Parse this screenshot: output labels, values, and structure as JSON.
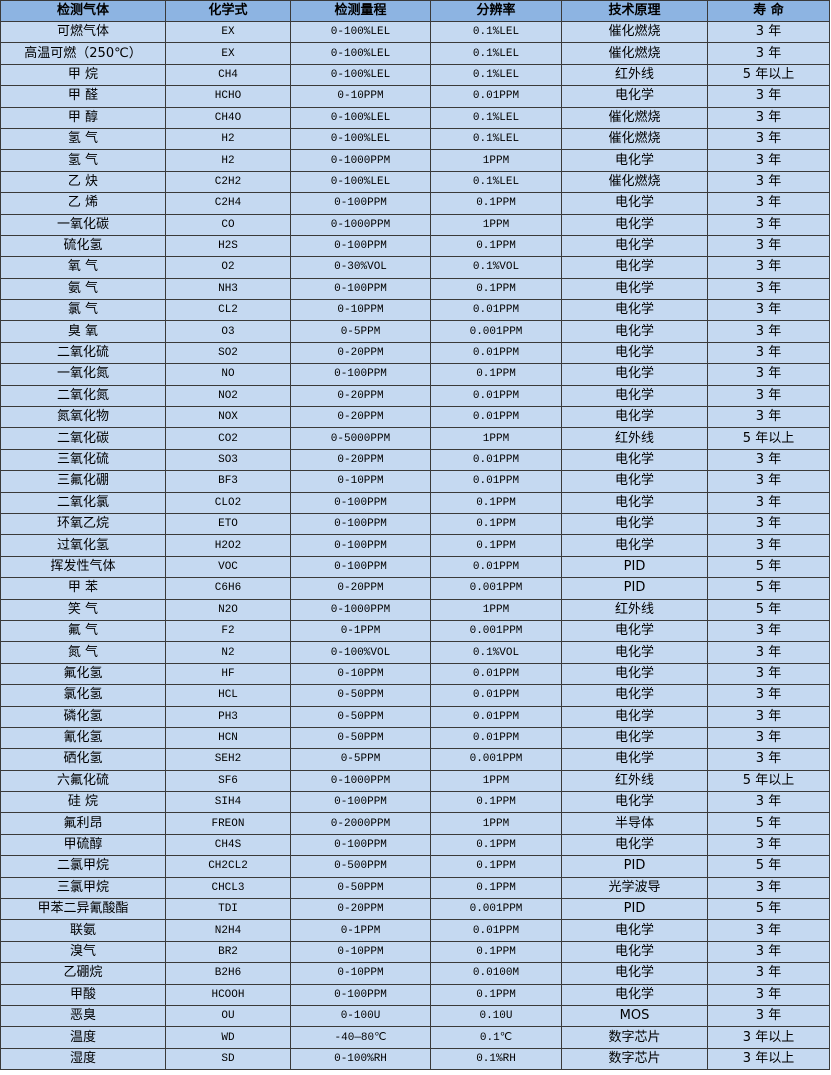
{
  "colors": {
    "header_bg": "#8db4e2",
    "row_bg": "#c5d9f1",
    "border": "#3a3a3a"
  },
  "headers": [
    "检测气体",
    "化学式",
    "检测量程",
    "分辨率",
    "技术原理",
    "寿 命"
  ],
  "rows": [
    [
      "可燃气体",
      "EX",
      "0-100%LEL",
      "0.1%LEL",
      "催化燃烧",
      "3 年"
    ],
    [
      "高温可燃（250℃）",
      "EX",
      "0-100%LEL",
      "0.1%LEL",
      "催化燃烧",
      "3 年"
    ],
    [
      "甲 烷",
      "CH4",
      "0-100%LEL",
      "0.1%LEL",
      "红外线",
      "5 年以上"
    ],
    [
      "甲 醛",
      "HCHO",
      "0-10PPM",
      "0.01PPM",
      "电化学",
      "3 年"
    ],
    [
      "甲 醇",
      "CH4O",
      "0-100%LEL",
      "0.1%LEL",
      "催化燃烧",
      "3 年"
    ],
    [
      "氢 气",
      "H2",
      "0-100%LEL",
      "0.1%LEL",
      "催化燃烧",
      "3 年"
    ],
    [
      "氢 气",
      "H2",
      "0-1000PPM",
      "1PPM",
      "电化学",
      "3 年"
    ],
    [
      "乙 炔",
      "C2H2",
      "0-100%LEL",
      "0.1%LEL",
      "催化燃烧",
      "3 年"
    ],
    [
      "乙 烯",
      "C2H4",
      "0-100PPM",
      "0.1PPM",
      "电化学",
      "3 年"
    ],
    [
      "一氧化碳",
      "CO",
      "0-1000PPM",
      "1PPM",
      "电化学",
      "3 年"
    ],
    [
      "硫化氢",
      "H2S",
      "0-100PPM",
      "0.1PPM",
      "电化学",
      "3 年"
    ],
    [
      "氧 气",
      "O2",
      "0-30%VOL",
      "0.1%VOL",
      "电化学",
      "3 年"
    ],
    [
      "氨 气",
      "NH3",
      "0-100PPM",
      "0.1PPM",
      "电化学",
      "3 年"
    ],
    [
      "氯 气",
      "CL2",
      "0-10PPM",
      "0.01PPM",
      "电化学",
      "3 年"
    ],
    [
      "臭 氧",
      "O3",
      "0-5PPM",
      "0.001PPM",
      "电化学",
      "3 年"
    ],
    [
      "二氧化硫",
      "SO2",
      "0-20PPM",
      "0.01PPM",
      "电化学",
      "3 年"
    ],
    [
      "一氧化氮",
      "NO",
      "0-100PPM",
      "0.1PPM",
      "电化学",
      "3 年"
    ],
    [
      "二氧化氮",
      "NO2",
      "0-20PPM",
      "0.01PPM",
      "电化学",
      "3 年"
    ],
    [
      "氮氧化物",
      "NOX",
      "0-20PPM",
      "0.01PPM",
      "电化学",
      "3 年"
    ],
    [
      "二氧化碳",
      "CO2",
      "0-5000PPM",
      "1PPM",
      "红外线",
      "5 年以上"
    ],
    [
      "三氧化硫",
      "SO3",
      "0-20PPM",
      "0.01PPM",
      "电化学",
      "3 年"
    ],
    [
      "三氟化硼",
      "BF3",
      "0-10PPM",
      "0.01PPM",
      "电化学",
      "3 年"
    ],
    [
      "二氧化氯",
      "CLO2",
      "0-100PPM",
      "0.1PPM",
      "电化学",
      "3 年"
    ],
    [
      "环氧乙烷",
      "ETO",
      "0-100PPM",
      "0.1PPM",
      "电化学",
      "3 年"
    ],
    [
      "过氧化氢",
      "H2O2",
      "0-100PPM",
      "0.1PPM",
      "电化学",
      "3 年"
    ],
    [
      "挥发性气体",
      "VOC",
      "0-100PPM",
      "0.01PPM",
      "PID",
      "5 年"
    ],
    [
      "甲 苯",
      "C6H6",
      "0-20PPM",
      "0.001PPM",
      "PID",
      "5 年"
    ],
    [
      "笑 气",
      "N2O",
      "0-1000PPM",
      "1PPM",
      "红外线",
      "5 年"
    ],
    [
      "氟 气",
      "F2",
      "0-1PPM",
      "0.001PPM",
      "电化学",
      "3 年"
    ],
    [
      "氮 气",
      "N2",
      "0-100%VOL",
      "0.1%VOL",
      "电化学",
      "3 年"
    ],
    [
      "氟化氢",
      "HF",
      "0-10PPM",
      "0.01PPM",
      "电化学",
      "3 年"
    ],
    [
      "氯化氢",
      "HCL",
      "0-50PPM",
      "0.01PPM",
      "电化学",
      "3 年"
    ],
    [
      "磷化氢",
      "PH3",
      "0-50PPM",
      "0.01PPM",
      "电化学",
      "3 年"
    ],
    [
      "氰化氢",
      "HCN",
      "0-50PPM",
      "0.01PPM",
      "电化学",
      "3 年"
    ],
    [
      "硒化氢",
      "SEH2",
      "0-5PPM",
      "0.001PPM",
      "电化学",
      "3 年"
    ],
    [
      "六氟化硫",
      "SF6",
      "0-1000PPM",
      "1PPM",
      "红外线",
      "5 年以上"
    ],
    [
      "硅 烷",
      "SIH4",
      "0-100PPM",
      "0.1PPM",
      "电化学",
      "3 年"
    ],
    [
      "氟利昂",
      "FREON",
      "0-2000PPM",
      "1PPM",
      "半导体",
      "5 年"
    ],
    [
      "甲硫醇",
      "CH4S",
      "0-100PPM",
      "0.1PPM",
      "电化学",
      "3 年"
    ],
    [
      "二氯甲烷",
      "CH2CL2",
      "0-500PPM",
      "0.1PPM",
      "PID",
      "5 年"
    ],
    [
      "三氯甲烷",
      "CHCL3",
      "0-50PPM",
      "0.1PPM",
      "光学波导",
      "3 年"
    ],
    [
      "甲苯二异氰酸酯",
      "TDI",
      "0-20PPM",
      "0.001PPM",
      "PID",
      "5 年"
    ],
    [
      "联氨",
      "N2H4",
      "0-1PPM",
      "0.01PPM",
      "电化学",
      "3 年"
    ],
    [
      "溴气",
      "BR2",
      "0-10PPM",
      "0.1PPM",
      "电化学",
      "3 年"
    ],
    [
      "乙硼烷",
      "B2H6",
      "0-10PPM",
      "0.0100M",
      "电化学",
      "3 年"
    ],
    [
      "甲酸",
      "HCOOH",
      "0-100PPM",
      "0.1PPM",
      "电化学",
      "3 年"
    ],
    [
      "恶臭",
      "OU",
      "0-100U",
      "0.10U",
      "MOS",
      "3 年"
    ],
    [
      "温度",
      "WD",
      "-40—80℃",
      "0.1℃",
      "数字芯片",
      "3 年以上"
    ],
    [
      "湿度",
      "SD",
      "0-100%RH",
      "0.1%RH",
      "数字芯片",
      "3 年以上"
    ]
  ]
}
